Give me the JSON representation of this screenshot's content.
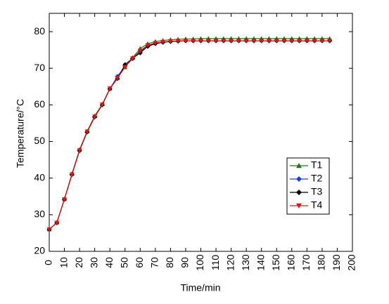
{
  "chart_data": {
    "type": "line",
    "xlabel": "Time/min",
    "ylabel": "Temperature/°C",
    "x": [
      0,
      5,
      10,
      15,
      20,
      25,
      30,
      35,
      40,
      45,
      50,
      55,
      60,
      65,
      70,
      75,
      80,
      85,
      90,
      95,
      100,
      105,
      110,
      115,
      120,
      125,
      130,
      135,
      140,
      145,
      150,
      155,
      160,
      165,
      170,
      175,
      180,
      185
    ],
    "series": [
      {
        "name": "T1",
        "color": "#1a7a1a",
        "marker": "triangle-up",
        "values": [
          26.0,
          27.9,
          34.3,
          41.2,
          47.8,
          52.8,
          57.0,
          60.2,
          64.5,
          67.4,
          70.3,
          72.9,
          75.4,
          76.7,
          77.3,
          77.6,
          77.8,
          77.9,
          78.0,
          78.0,
          78.1,
          78.1,
          78.1,
          78.1,
          78.1,
          78.1,
          78.1,
          78.1,
          78.1,
          78.1,
          78.1,
          78.1,
          78.1,
          78.1,
          78.1,
          78.1,
          78.1,
          78.1
        ]
      },
      {
        "name": "T2",
        "color": "#1f3fd6",
        "marker": "diamond",
        "values": [
          26.0,
          27.8,
          34.2,
          41.0,
          47.6,
          52.6,
          56.8,
          60.0,
          64.4,
          67.8,
          70.5,
          72.6,
          74.6,
          76.2,
          76.8,
          77.1,
          77.3,
          77.4,
          77.5,
          77.5,
          77.5,
          77.5,
          77.5,
          77.5,
          77.5,
          77.5,
          77.5,
          77.5,
          77.5,
          77.5,
          77.5,
          77.5,
          77.5,
          77.5,
          77.5,
          77.5,
          77.5,
          77.5
        ]
      },
      {
        "name": "T3",
        "color": "#000000",
        "marker": "diamond",
        "values": [
          26.0,
          27.8,
          34.2,
          41.0,
          47.5,
          52.6,
          56.7,
          60.0,
          64.4,
          67.2,
          71.0,
          72.7,
          74.2,
          76.0,
          76.7,
          77.1,
          77.3,
          77.4,
          77.5,
          77.5,
          77.5,
          77.5,
          77.5,
          77.5,
          77.5,
          77.5,
          77.5,
          77.5,
          77.5,
          77.5,
          77.5,
          77.5,
          77.5,
          77.5,
          77.5,
          77.5,
          77.5,
          77.5
        ]
      },
      {
        "name": "T4",
        "color": "#e01515",
        "marker": "triangle-down",
        "values": [
          26.0,
          27.8,
          34.2,
          41.0,
          47.6,
          52.7,
          56.8,
          60.1,
          64.5,
          67.3,
          70.3,
          72.7,
          74.8,
          76.3,
          76.9,
          77.2,
          77.4,
          77.5,
          77.5,
          77.5,
          77.5,
          77.5,
          77.5,
          77.5,
          77.5,
          77.5,
          77.5,
          77.5,
          77.5,
          77.5,
          77.5,
          77.5,
          77.5,
          77.5,
          77.5,
          77.5,
          77.5,
          77.5
        ]
      }
    ],
    "xlim": [
      0,
      200
    ],
    "xticks": [
      0,
      10,
      20,
      30,
      40,
      50,
      60,
      70,
      80,
      90,
      100,
      110,
      120,
      130,
      140,
      150,
      160,
      170,
      180,
      190,
      200
    ],
    "ylim": [
      20,
      85
    ],
    "yticks": [
      20,
      30,
      40,
      50,
      60,
      70,
      80
    ],
    "grid": false,
    "legend": "center right"
  }
}
